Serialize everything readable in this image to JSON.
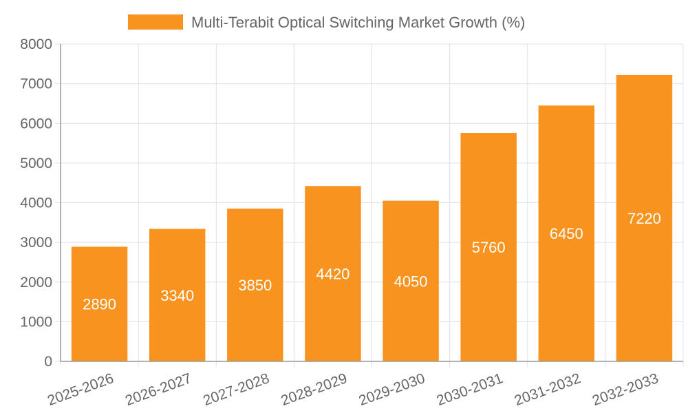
{
  "chart_data": {
    "type": "bar",
    "categories": [
      "2025-2026",
      "2026-2027",
      "2027-2028",
      "2028-2029",
      "2029-2030",
      "2030-2031",
      "2031-2032",
      "2032-2033"
    ],
    "series": [
      {
        "name": "Multi-Terabit Optical Switching Market Growth (%)",
        "values": [
          2890,
          3340,
          3850,
          4420,
          4050,
          5760,
          6450,
          7220
        ]
      }
    ],
    "ylim": [
      0,
      8000
    ],
    "yticks": [
      0,
      1000,
      2000,
      3000,
      4000,
      5000,
      6000,
      7000,
      8000
    ],
    "grid": true,
    "legend_position": "top",
    "data_labels": true,
    "colors": {
      "bar": "#f7931e",
      "grid": "#e0e0e0",
      "axis": "#999999",
      "text": "#666666",
      "label": "#ffffff"
    }
  }
}
